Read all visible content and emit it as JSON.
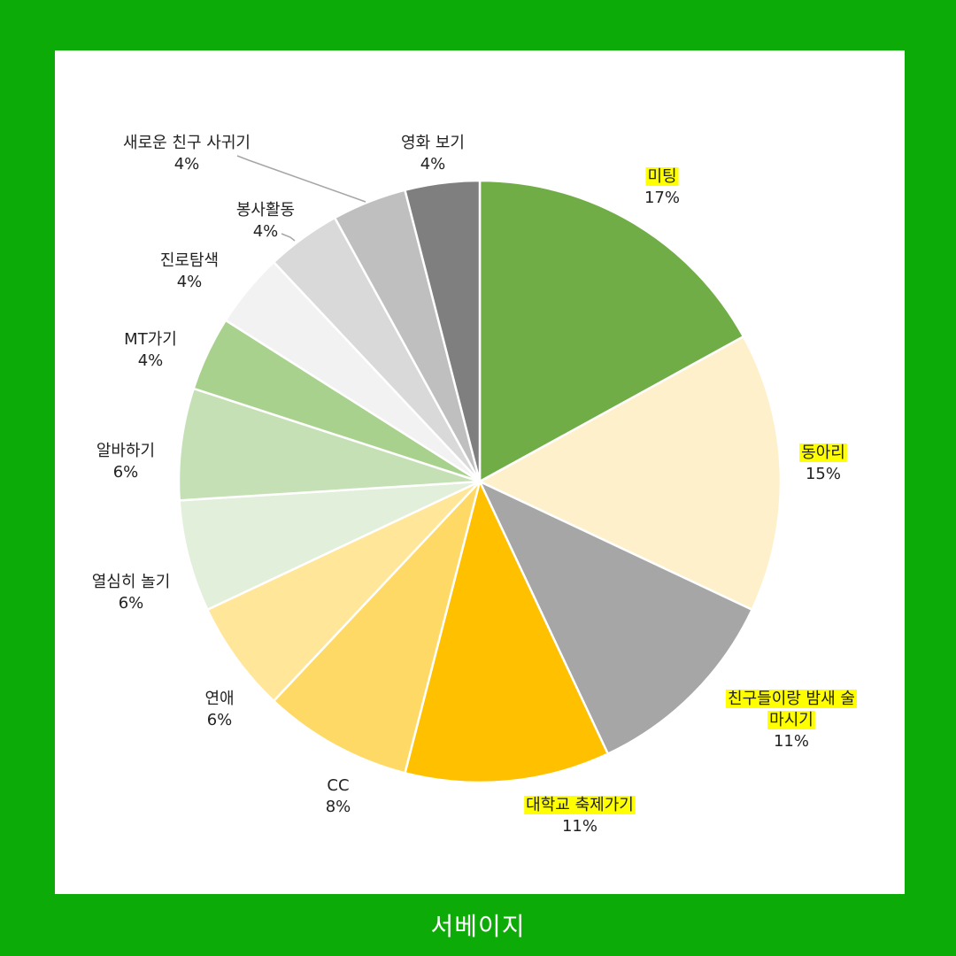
{
  "chart_data": {
    "type": "pie",
    "slices": [
      {
        "label": "미팅",
        "value": 17,
        "display": "17%",
        "color": "#70ad47",
        "highlight": true
      },
      {
        "label": "동아리",
        "value": 15,
        "display": "15%",
        "color": "#fff0cc",
        "highlight": true
      },
      {
        "label": "친구들이랑 밤새 술 마시기",
        "label_lines": [
          "친구들이랑 밤새 술",
          "마시기"
        ],
        "value": 11,
        "display": "11%",
        "color": "#a6a6a6",
        "highlight": true
      },
      {
        "label": "대학교 축제가기",
        "value": 11,
        "display": "11%",
        "color": "#ffc000",
        "highlight": true
      },
      {
        "label": "CC",
        "value": 8,
        "display": "8%",
        "color": "#ffd966",
        "highlight": false
      },
      {
        "label": "연애",
        "value": 6,
        "display": "6%",
        "color": "#ffe699",
        "highlight": false
      },
      {
        "label": "열심히 놀기",
        "value": 6,
        "display": "6%",
        "color": "#e2efda",
        "highlight": false
      },
      {
        "label": "알바하기",
        "value": 6,
        "display": "6%",
        "color": "#c5e0b4",
        "highlight": false
      },
      {
        "label": "MT가기",
        "value": 4,
        "display": "4%",
        "color": "#a9d18e",
        "highlight": false
      },
      {
        "label": "진로탐색",
        "value": 4,
        "display": "4%",
        "color": "#f2f2f2",
        "highlight": false
      },
      {
        "label": "봉사활동",
        "value": 4,
        "display": "4%",
        "color": "#d9d9d9",
        "highlight": false
      },
      {
        "label": "새로운 친구 사귀기",
        "value": 4,
        "display": "4%",
        "color": "#bfbfbf",
        "highlight": false
      },
      {
        "label": "영화 보기",
        "value": 4,
        "display": "4%",
        "color": "#7f7f7f",
        "highlight": false
      }
    ],
    "start_angle_deg": 0,
    "direction": "clockwise",
    "legend": "none",
    "highlight_color": "#ffff00"
  },
  "footer": {
    "text": "서베이지"
  },
  "colors": {
    "page_background": "#0cab07",
    "panel_background": "#ffffff",
    "label_text": "#222222",
    "footer_text": "#ffffff"
  }
}
